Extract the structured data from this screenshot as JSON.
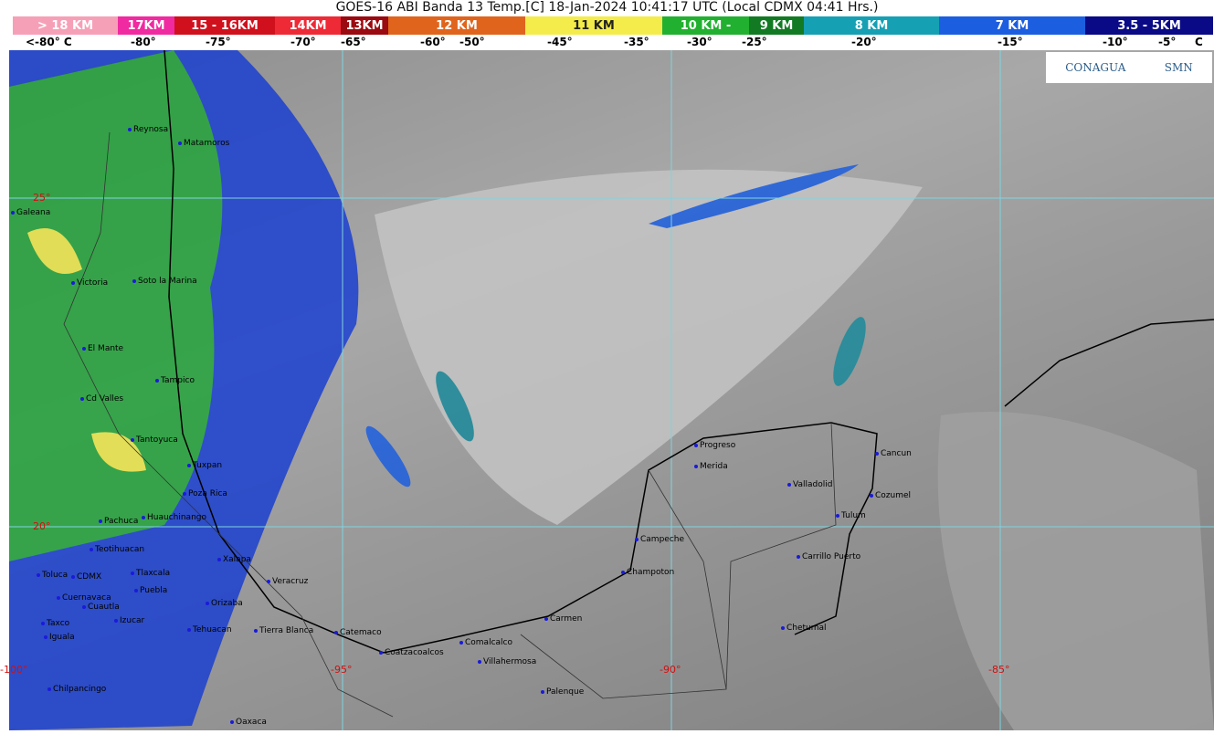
{
  "title": "GOES-16 ABI Banda 13 Temp.[C] 18-Jan-2024 10:41:17 UTC (Local CDMX  04:41 Hrs.)",
  "scale": [
    {
      "label": "> 18 KM",
      "color": "#f6a0b8"
    },
    {
      "label": "17KM",
      "color": "#f02aa0"
    },
    {
      "label": "15 - 16KM",
      "color": "#d0101c"
    },
    {
      "label": "14KM",
      "color": "#ee2a36"
    },
    {
      "label": "13KM",
      "color": "#9a0a10"
    },
    {
      "label": "12 KM",
      "color": "#e0641c"
    },
    {
      "label": "11 KM",
      "color": "#f4ec4a"
    },
    {
      "label": "10 KM -",
      "color": "#22b030"
    },
    {
      "label": "9 KM",
      "color": "#137a24"
    },
    {
      "label": "8 KM",
      "color": "#16a0b4"
    },
    {
      "label": "7 KM",
      "color": "#1c5ee0"
    },
    {
      "label": "3.5 - 5KM",
      "color": "#0a0a86"
    }
  ],
  "temps": [
    "<-80° C",
    "-80°",
    "-75°",
    "-70°",
    "-65°",
    "-60°",
    "-50°",
    "-45°",
    "-35°",
    "-30°",
    "-25°",
    "-20°",
    "-15°",
    "-10°",
    "-5°",
    "C"
  ],
  "logo": {
    "conagua": "CONAGUA",
    "smn": "SMN"
  },
  "latitudes": [
    "25°",
    "20°"
  ],
  "longitudes": [
    "-100°",
    "-95°",
    "-90°",
    "-85°"
  ],
  "cities": [
    "Reynosa",
    "Matamoros",
    "Galeana",
    "Victoria",
    "Soto la Marina",
    "El Mante",
    "Tampico",
    "Cd Valles",
    "Tantoyuca",
    "Tuxpan",
    "Poza Rica",
    "Huauchinango",
    "Pachuca",
    "Teotihuacan",
    "Toluca",
    "CDMX",
    "Tlaxcala",
    "Puebla",
    "Xalapa",
    "Veracruz",
    "Cuernavaca",
    "Cuautla",
    "Orizaba",
    "Izucar",
    "Tehuacan",
    "Tierra Blanca",
    "Catemaco",
    "Taxco",
    "Iguala",
    "Coatzacoalcos",
    "Comalcalco",
    "Villahermosa",
    "Chilpancingo",
    "Oaxaca",
    "Palenque",
    "Carmen",
    "Champoton",
    "Campeche",
    "Progreso",
    "Merida",
    "Valladolid",
    "Cancun",
    "Cozumel",
    "Tulum",
    "Carrillo Puerto",
    "Chetumal"
  ]
}
